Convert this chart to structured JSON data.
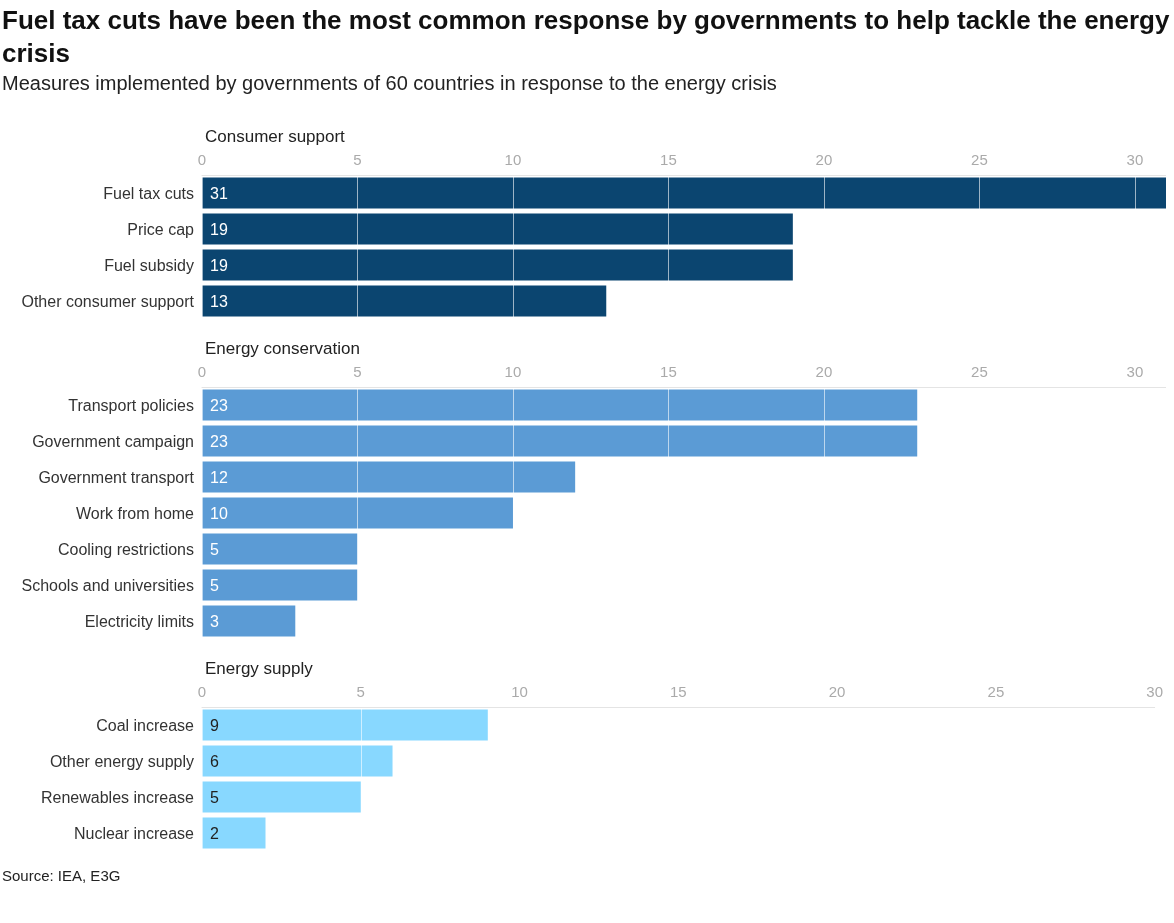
{
  "chart_data": [
    {
      "type": "bar",
      "orientation": "horizontal",
      "title": "Fuel tax cuts have been the most common response by governments to help tackle the energy crisis",
      "subtitle": "Measures implemented by governments of 60 countries in response to the energy crisis",
      "xlabel": "Consumer support",
      "categories": [
        "Fuel tax cuts",
        "Price cap",
        "Fuel subsidy",
        "Other consumer support"
      ],
      "values": [
        31,
        19,
        19,
        13
      ],
      "color": "#0b4570",
      "xlim": [
        0,
        31
      ],
      "xticks": [
        0,
        5,
        10,
        15,
        20,
        25,
        30
      ],
      "grid": "x",
      "data_labels": true
    },
    {
      "type": "bar",
      "orientation": "horizontal",
      "xlabel": "Energy conservation",
      "categories": [
        "Transport policies",
        "Government campaign",
        "Government transport",
        "Work from home",
        "Cooling restrictions",
        "Schools and universities",
        "Electricity limits"
      ],
      "values": [
        23,
        23,
        12,
        10,
        5,
        5,
        3
      ],
      "color": "#5b9bd5",
      "xlim": [
        0,
        31
      ],
      "xticks": [
        0,
        5,
        10,
        15,
        20,
        25,
        30
      ],
      "grid": "x",
      "data_labels": true
    },
    {
      "type": "bar",
      "orientation": "horizontal",
      "xlabel": "Energy supply",
      "categories": [
        "Coal increase",
        "Other energy supply",
        "Renewables increase",
        "Nuclear increase"
      ],
      "values": [
        9,
        6,
        5,
        2
      ],
      "color": "#88d8ff",
      "xlim": [
        0,
        30
      ],
      "xticks": [
        0,
        5,
        10,
        15,
        20,
        25,
        30
      ],
      "grid": "x",
      "data_labels": true,
      "annotations": [
        "Source: IEA, E3G"
      ]
    }
  ]
}
